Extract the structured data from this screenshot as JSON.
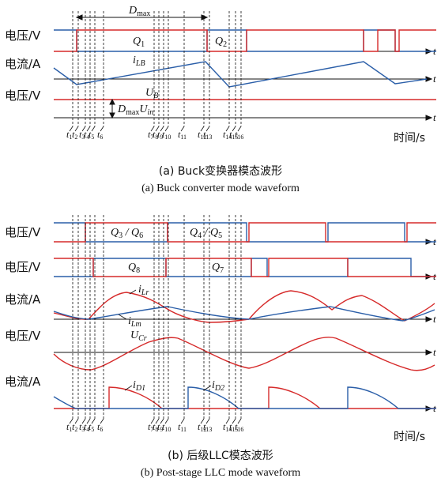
{
  "figure": {
    "colors": {
      "blue": "#2a5ea8",
      "red": "#d62a2a",
      "axis": "#111111"
    },
    "panel_a": {
      "row_labels": [
        "电压/V",
        "电流/A",
        "电压/V"
      ],
      "dmax_label": "D",
      "dmax_sub": "max",
      "q1": "Q",
      "q1_sub": "1",
      "q2": "Q",
      "q2_sub": "2",
      "ilb": "i",
      "ilb_sub": "LB",
      "ub": "U",
      "ub_sub": "B",
      "dmax_uin_a": "D",
      "dmax_uin_b": "max",
      "dmax_uin_c": "U",
      "dmax_uin_d": "in",
      "time_label": "时间/s",
      "caption_cn": "(a) Buck变换器模态波形",
      "caption_en": "(a) Buck converter mode waveform"
    },
    "panel_b": {
      "row_labels": [
        "电压/V",
        "电压/V",
        "电流/A",
        "电压/V",
        "电流/A"
      ],
      "q36": "Q",
      "q36_a": "3",
      "q36_sep": " / Q",
      "q36_b": "6",
      "q45": "Q",
      "q45_a": "4",
      "q45_sep": " / Q",
      "q45_b": "5",
      "q8": "Q",
      "q8_sub": "8",
      "q7": "Q",
      "q7_sub": "7",
      "ilr": "i",
      "ilr_sub": "Lr",
      "ilm": "i",
      "ilm_sub": "Lm",
      "ucr": "U",
      "ucr_sub": "Cr",
      "id1": "i",
      "id1_sub": "D1",
      "id2": "i",
      "id2_sub": "D2",
      "time_label": "时间/s",
      "caption_cn": "(b) 后级LLC模态波形",
      "caption_en": "(b) Post-stage LLC mode waveform"
    },
    "axis_t": "t",
    "time_ticks": [
      {
        "b": "t",
        "s": "1"
      },
      {
        "b": "t",
        "s": "2"
      },
      {
        "b": "t",
        "s": "3"
      },
      {
        "b": "t",
        "s": "4"
      },
      {
        "b": "t",
        "s": "5"
      },
      {
        "b": "t",
        "s": "6"
      },
      {
        "b": "t",
        "s": "7"
      },
      {
        "b": "t",
        "s": "8"
      },
      {
        "b": "t",
        "s": "9"
      },
      {
        "b": "t",
        "s": "10"
      },
      {
        "b": "t",
        "s": "11"
      },
      {
        "b": "t",
        "s": "12"
      },
      {
        "b": "t",
        "s": "13"
      },
      {
        "b": "t",
        "s": "14"
      },
      {
        "b": "t",
        "s": "15"
      },
      {
        "b": "t",
        "s": "16"
      }
    ]
  }
}
